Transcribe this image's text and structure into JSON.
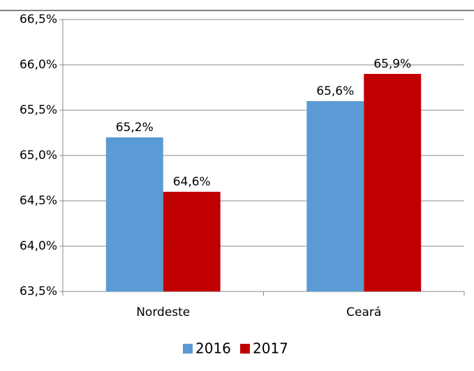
{
  "chart_data": {
    "type": "bar",
    "categories": [
      "Nordeste",
      "Ceará"
    ],
    "series": [
      {
        "name": "2016",
        "color": "#5b9bd5",
        "values": [
          65.2,
          65.6
        ],
        "value_labels": [
          "65,2%",
          "65,6%"
        ]
      },
      {
        "name": "2017",
        "color": "#c00000",
        "values": [
          64.6,
          65.9
        ],
        "value_labels": [
          "64,6%",
          "65,9%"
        ]
      }
    ],
    "ylim": [
      63.5,
      66.5
    ],
    "yticks": [
      {
        "value": 63.5,
        "label": "63,5%"
      },
      {
        "value": 64.0,
        "label": "64,0%"
      },
      {
        "value": 64.5,
        "label": "64,5%"
      },
      {
        "value": 65.0,
        "label": "65,0%"
      },
      {
        "value": 65.5,
        "label": "65,5%"
      },
      {
        "value": 66.0,
        "label": "66,0%"
      },
      {
        "value": 66.5,
        "label": "66,5%"
      }
    ],
    "grid": true,
    "legend": "bottom"
  }
}
